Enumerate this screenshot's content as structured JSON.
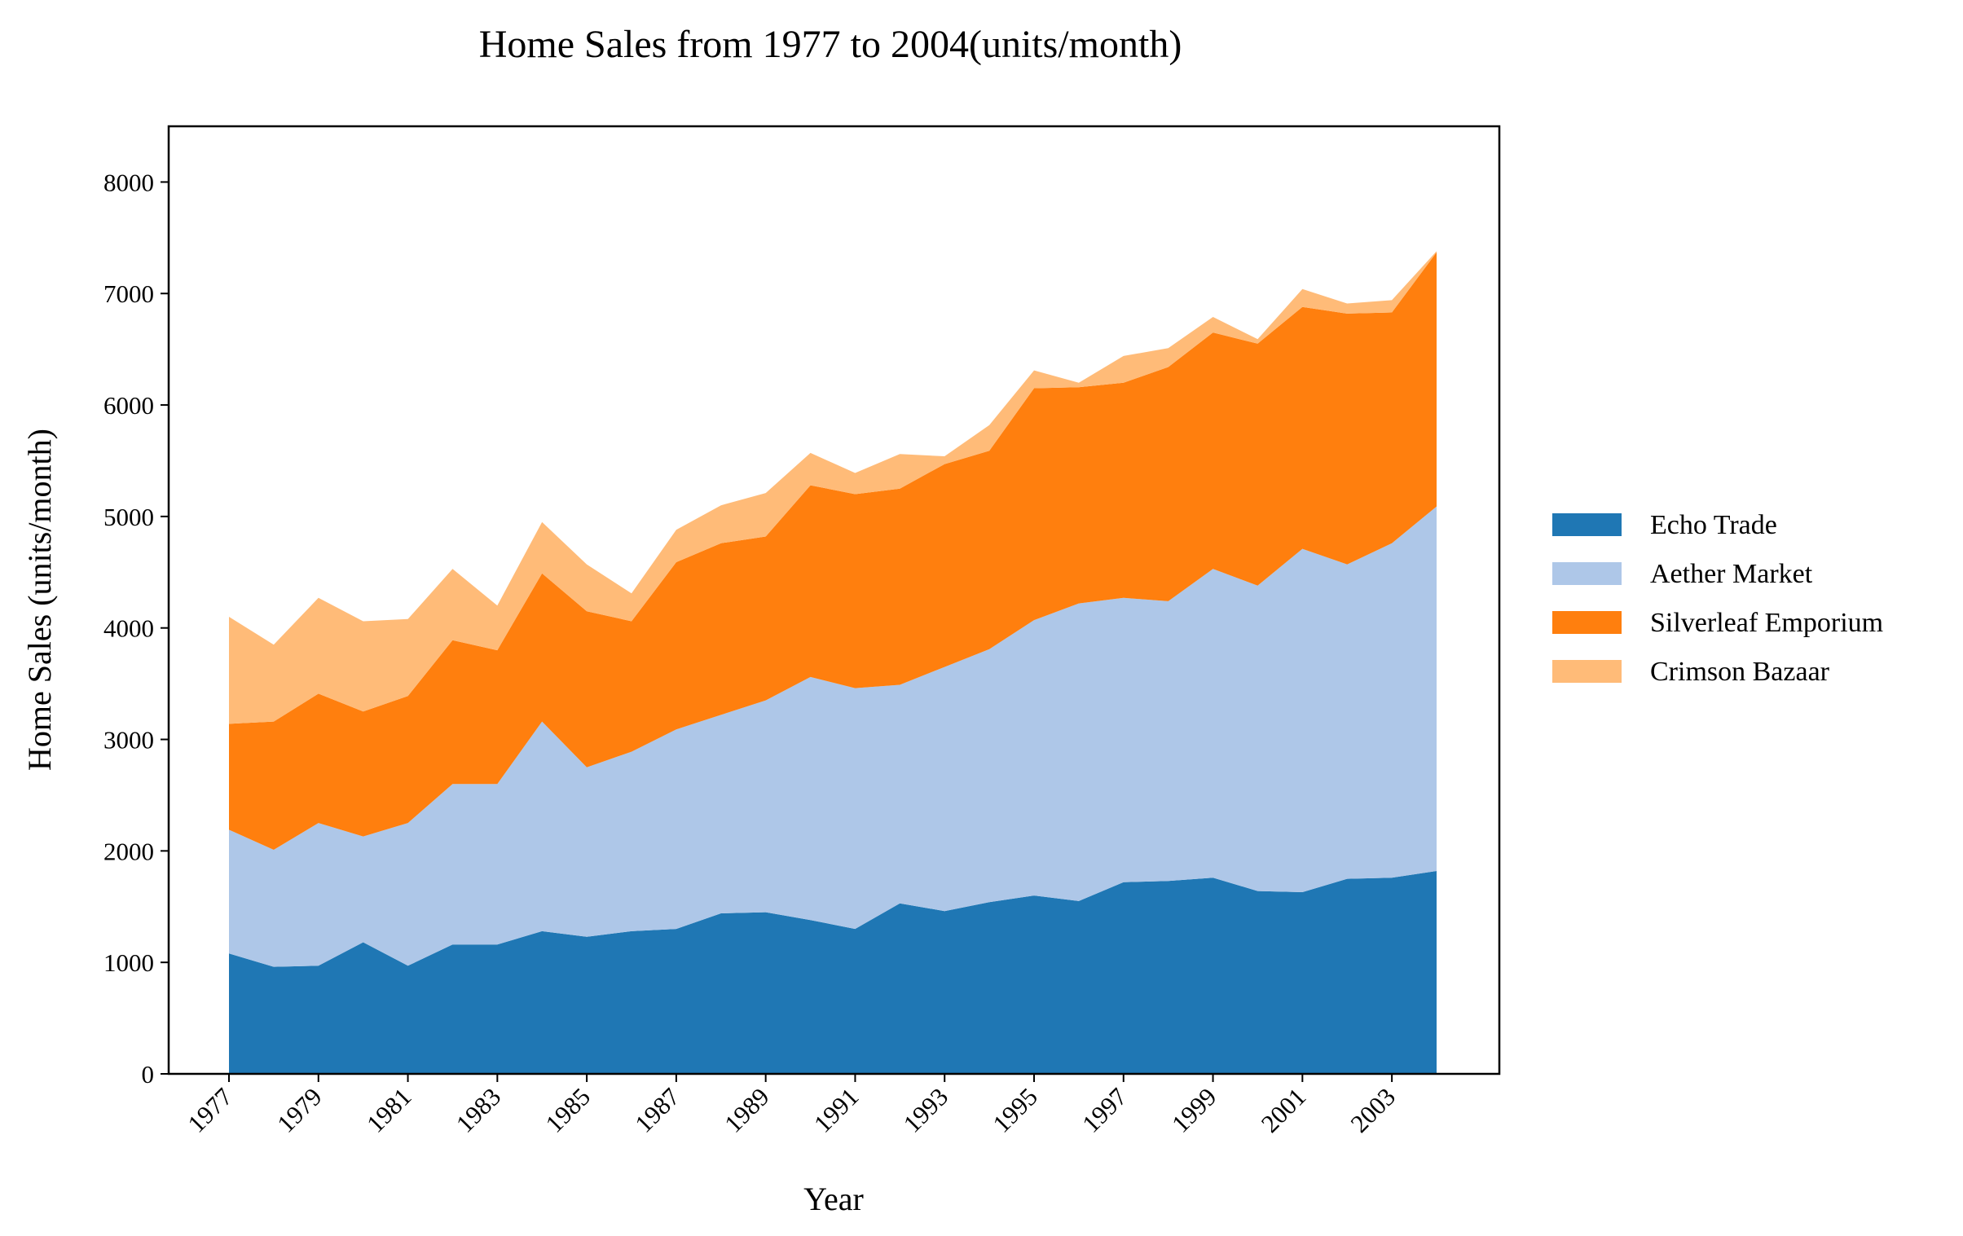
{
  "chart_data": {
    "type": "area",
    "stacked": true,
    "title": "Home Sales from 1977 to 2004(units/month)",
    "xlabel": "Year",
    "ylabel": "Home Sales (units/month)",
    "ylim": [
      0,
      8500
    ],
    "yticks": [
      "0",
      "1000",
      "2000",
      "3000",
      "4000",
      "5000",
      "6000",
      "7000",
      "8000"
    ],
    "xticks": [
      "1977",
      "1979",
      "1981",
      "1983",
      "1985",
      "1987",
      "1989",
      "1991",
      "1993",
      "1995",
      "1997",
      "1999",
      "2001",
      "2003"
    ],
    "grid": false,
    "legend_position": "right",
    "x": [
      1977,
      1978,
      1979,
      1980,
      1981,
      1982,
      1983,
      1984,
      1985,
      1986,
      1987,
      1988,
      1989,
      1990,
      1991,
      1992,
      1993,
      1994,
      1995,
      1996,
      1997,
      1998,
      1999,
      2000,
      2001,
      2002,
      2003,
      2004
    ],
    "series": [
      {
        "name": "Echo Trade",
        "color": "#1f77b4",
        "values": [
          1080,
          960,
          970,
          1180,
          970,
          1160,
          1160,
          1280,
          1230,
          1280,
          1300,
          1440,
          1450,
          1380,
          1300,
          1530,
          1460,
          1540,
          1600,
          1550,
          1720,
          1730,
          1760,
          1640,
          1630,
          1750,
          1760,
          1820
        ]
      },
      {
        "name": "Aether Market",
        "color": "#aec7e8",
        "values": [
          1110,
          1050,
          1280,
          950,
          1280,
          1440,
          1440,
          1880,
          1520,
          1610,
          1790,
          1780,
          1900,
          2180,
          2160,
          1960,
          2190,
          2270,
          2470,
          2670,
          2550,
          2510,
          2770,
          2740,
          3080,
          2820,
          3000,
          3270
        ]
      },
      {
        "name": "Silverleaf Emporium",
        "color": "#ff7f0e",
        "values": [
          950,
          1150,
          1160,
          1120,
          1140,
          1290,
          1200,
          1330,
          1400,
          1170,
          1500,
          1540,
          1470,
          1720,
          1740,
          1760,
          1820,
          1780,
          2080,
          1940,
          1930,
          2100,
          2120,
          2170,
          2170,
          2250,
          2070,
          2280
        ]
      },
      {
        "name": "Crimson Bazaar",
        "color": "#ffbb78",
        "values": [
          960,
          690,
          860,
          810,
          690,
          640,
          400,
          460,
          420,
          250,
          290,
          340,
          390,
          290,
          190,
          310,
          70,
          230,
          160,
          40,
          240,
          170,
          140,
          40,
          160,
          90,
          110,
          10
        ]
      }
    ]
  }
}
